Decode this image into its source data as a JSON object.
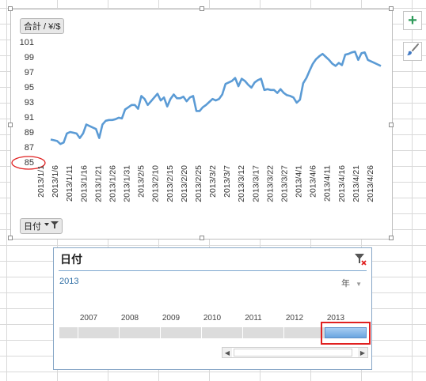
{
  "chart": {
    "field_button": "合計 / ¥/$",
    "axis_button": "日付",
    "line_color": "#5b9bd5",
    "annotation_color": "#e02020"
  },
  "chart_data": {
    "type": "line",
    "title": "",
    "xlabel": "",
    "ylabel": "",
    "ylim": [
      85,
      101
    ],
    "yticks": [
      101,
      99,
      97,
      95,
      93,
      91,
      89,
      87,
      85
    ],
    "xtick_labels": [
      "2013/1/1",
      "2013/1/6",
      "2013/1/11",
      "2013/1/16",
      "2013/1/21",
      "2013/1/26",
      "2013/1/31",
      "2013/2/5",
      "2013/2/10",
      "2013/2/15",
      "2013/2/20",
      "2013/2/25",
      "2013/3/2",
      "2013/3/7",
      "2013/3/12",
      "2013/3/17",
      "2013/3/22",
      "2013/3/27",
      "2013/4/1",
      "2013/4/6",
      "2013/4/11",
      "2013/4/16",
      "2013/4/21",
      "2013/4/26"
    ],
    "series": [
      {
        "values": [
          88.0,
          87.9,
          87.8,
          87.4,
          87.6,
          88.8,
          89.0,
          88.9,
          88.8,
          88.2,
          88.8,
          90.0,
          89.8,
          89.6,
          89.4,
          88.2,
          90.0,
          90.5,
          90.6,
          90.6,
          90.7,
          90.9,
          90.8,
          92.0,
          92.3,
          92.6,
          92.6,
          92.1,
          93.8,
          93.4,
          92.6,
          93.1,
          93.6,
          94.1,
          93.2,
          93.6,
          92.4,
          93.4,
          94.0,
          93.5,
          93.5,
          93.7,
          93.1,
          93.6,
          93.8,
          91.8,
          91.8,
          92.3,
          92.6,
          93.0,
          93.4,
          93.2,
          93.4,
          94.0,
          95.4,
          95.6,
          95.8,
          96.2,
          95.1,
          96.1,
          95.8,
          95.3,
          94.9,
          95.6,
          95.9,
          96.1,
          94.6,
          94.7,
          94.6,
          94.6,
          94.2,
          94.7,
          94.2,
          93.9,
          93.8,
          93.6,
          92.9,
          93.3,
          95.5,
          96.2,
          97.2,
          98.1,
          98.7,
          99.1,
          99.4,
          99.0,
          98.6,
          98.1,
          97.8,
          98.2,
          97.9,
          99.3,
          99.4,
          99.6,
          99.7,
          98.6,
          99.5,
          99.6,
          98.6,
          98.4,
          98.2,
          98.0,
          97.8
        ]
      }
    ]
  },
  "side_buttons": {
    "add_glyph": "+"
  },
  "slicer": {
    "title": "日付",
    "selected_range": "2013",
    "level": "年",
    "years": [
      "2007",
      "2008",
      "2009",
      "2010",
      "2011",
      "2012",
      "2013"
    ],
    "selected_year": "2013",
    "border_color": "#86a6c6",
    "selection_color": "#6aa5e0",
    "highlight_color": "#e02020"
  }
}
